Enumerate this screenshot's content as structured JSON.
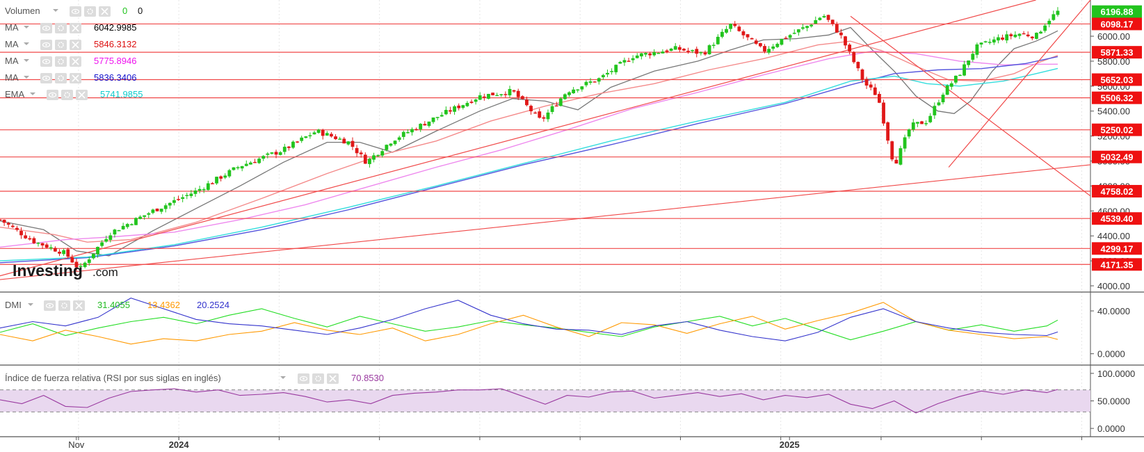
{
  "colors": {
    "up": "#22c41e",
    "down": "#e01818",
    "level_line": "#f04848",
    "trend_line": "#f04848",
    "ma1": "#777777",
    "ma2": "#f48a8a",
    "ma3": "#ee88ee",
    "ma4": "#5555dd",
    "ema": "#33dddd",
    "dmi_plus": "#22dd22",
    "dmi_minus": "#ff9900",
    "adx": "#3333cc",
    "rsi": "#9a3aa0",
    "rsi_band": "#e9d8ef"
  },
  "legend": {
    "volume": {
      "label": "Volumen",
      "v1": "0",
      "v2": "0"
    },
    "ma": [
      {
        "label": "MA",
        "value": "6042.9985",
        "color": "#000000"
      },
      {
        "label": "MA",
        "value": "5846.3132",
        "color": "#dd1111"
      },
      {
        "label": "MA",
        "value": "5775.8946",
        "color": "#ee11ee"
      },
      {
        "label": "MA",
        "value": "5836.3406",
        "color": "#1111cc"
      }
    ],
    "ema": {
      "label": "EMA",
      "value": "5741.9855",
      "color": "#11cccc"
    },
    "dmi": {
      "label": "DMI",
      "v1": "31.4055",
      "v2": "13.4362",
      "v3": "20.2524"
    },
    "rsi": {
      "label": "Índice de fuerza relativa (RSI por sus siglas en inglés)",
      "value": "70.8530"
    }
  },
  "watermark": {
    "brand": "Investing",
    "suffix": ".com"
  },
  "price_axis_ticks": [
    "6000.00",
    "5800.00",
    "5600.00",
    "5400.00",
    "5200.00",
    "5000.00",
    "4800.00",
    "4600.00",
    "4400.00",
    "4200.00",
    "4000.00"
  ],
  "price_tags": [
    {
      "value": "6196.88",
      "bg": "#22c41e"
    },
    {
      "value": "6098.17",
      "bg": "#ee1111"
    },
    {
      "value": "5871.33",
      "bg": "#ee1111"
    },
    {
      "value": "5652.03",
      "bg": "#ee1111"
    },
    {
      "value": "5506.32",
      "bg": "#ee1111"
    },
    {
      "value": "5250.02",
      "bg": "#ee1111"
    },
    {
      "value": "5032.49",
      "bg": "#ee1111"
    },
    {
      "value": "4758.02",
      "bg": "#ee1111"
    },
    {
      "value": "4539.40",
      "bg": "#ee1111"
    },
    {
      "value": "4299.17",
      "bg": "#ee1111"
    },
    {
      "value": "4171.35",
      "bg": "#ee1111"
    }
  ],
  "dmi_axis_ticks": [
    "40.0000",
    "0.0000"
  ],
  "rsi_axis_ticks": [
    "100.0000",
    "50.0000",
    "0.0000"
  ],
  "x_labels": [
    "Nov",
    "2024",
    "2025"
  ],
  "chart_data": {
    "type": "candlestick",
    "ylim": [
      3950,
      6290
    ],
    "levels": [
      6098.17,
      5871.33,
      5652.03,
      5506.32,
      5250.02,
      5032.49,
      4758.02,
      4539.4,
      4299.17,
      4171.35
    ],
    "last_price": 6196.88,
    "x_range": [
      0,
      100
    ],
    "x_ticks": {
      "Nov": 7,
      "2024": 16.4,
      "2025": 72.4
    },
    "trend_lines": [
      {
        "x": [
          0,
          95
        ],
        "y": [
          4080,
          6290
        ]
      },
      {
        "x": [
          0,
          100
        ],
        "y": [
          4050,
          4970
        ]
      },
      {
        "x": [
          78,
          100
        ],
        "y": [
          6160,
          4720
        ]
      },
      {
        "x": [
          87,
          100
        ],
        "y": [
          4950,
          6290
        ]
      }
    ],
    "price": {
      "x": [
        0,
        3,
        6,
        7.3,
        10,
        14,
        18,
        22,
        26,
        29,
        32,
        33.6,
        36,
        40,
        44,
        47,
        49.6,
        52,
        55,
        58,
        62,
        64.5,
        67,
        70,
        72,
        74,
        75.5,
        77,
        79.3,
        80.5,
        82,
        83.5,
        85,
        86.5,
        88,
        89.5,
        91.5,
        93.5,
        95,
        96,
        97
      ],
      "y": [
        4530,
        4360,
        4260,
        4130,
        4420,
        4600,
        4760,
        4960,
        5090,
        5240,
        5150,
        4990,
        5170,
        5350,
        5520,
        5560,
        5320,
        5560,
        5660,
        5840,
        5900,
        5860,
        6090,
        5880,
        5990,
        6080,
        6170,
        6020,
        5620,
        5520,
        4960,
        5280,
        5320,
        5550,
        5700,
        5910,
        5980,
        6020,
        6000,
        6120,
        6196.88
      ]
    },
    "ma_lines": [
      {
        "name": "MA",
        "value": 6042.9985,
        "x": [
          0,
          4,
          7,
          10,
          14,
          18,
          22,
          26,
          30,
          33,
          36,
          40,
          44,
          47,
          50,
          53,
          56,
          60,
          64,
          67,
          70,
          73,
          76,
          78,
          80,
          82,
          84,
          86,
          87.5,
          89,
          91,
          93,
          95,
          96,
          97
        ],
        "y": [
          4520,
          4450,
          4280,
          4240,
          4440,
          4620,
          4800,
          4990,
          5150,
          5150,
          5070,
          5240,
          5400,
          5500,
          5480,
          5410,
          5590,
          5720,
          5800,
          5890,
          5970,
          5980,
          6010,
          6070,
          5890,
          5720,
          5520,
          5400,
          5380,
          5480,
          5720,
          5900,
          5960,
          6000,
          6042.9985
        ]
      },
      {
        "name": "MA",
        "value": 5846.3132,
        "x": [
          0,
          5,
          8,
          12,
          18,
          24,
          30,
          35,
          40,
          45,
          50,
          55,
          60,
          65,
          70,
          75,
          78,
          81,
          84,
          87,
          90,
          93,
          95,
          97
        ],
        "y": [
          4470,
          4410,
          4350,
          4370,
          4510,
          4700,
          4900,
          5050,
          5160,
          5320,
          5440,
          5540,
          5620,
          5730,
          5820,
          5930,
          5960,
          5880,
          5760,
          5650,
          5640,
          5700,
          5780,
          5846.3132
        ]
      },
      {
        "name": "MA",
        "value": 5775.8946,
        "x": [
          0,
          6,
          10,
          16,
          22,
          28,
          34,
          40,
          46,
          52,
          58,
          64,
          70,
          76,
          80,
          84,
          88,
          92,
          95,
          97
        ],
        "y": [
          4310,
          4370,
          4390,
          4430,
          4530,
          4650,
          4800,
          4950,
          5090,
          5250,
          5420,
          5550,
          5690,
          5820,
          5880,
          5860,
          5800,
          5770,
          5775,
          5775.8946
        ]
      },
      {
        "name": "MA",
        "value": 5836.3406,
        "x": [
          0,
          8,
          16,
          24,
          32,
          40,
          48,
          56,
          64,
          72,
          78,
          82,
          86,
          90,
          94,
          97
        ],
        "y": [
          4185,
          4225,
          4320,
          4450,
          4610,
          4790,
          4970,
          5130,
          5300,
          5460,
          5610,
          5700,
          5730,
          5740,
          5780,
          5836.3406
        ]
      },
      {
        "name": "EMA",
        "value": 5741.9855,
        "x": [
          0,
          8,
          16,
          24,
          32,
          40,
          48,
          56,
          64,
          72,
          78,
          82,
          85,
          88,
          92,
          95,
          97
        ],
        "y": [
          4200,
          4230,
          4330,
          4470,
          4630,
          4800,
          4980,
          5160,
          5320,
          5470,
          5640,
          5680,
          5620,
          5600,
          5640,
          5700,
          5741.9855
        ]
      }
    ],
    "dmi": {
      "ylim": [
        -8,
        55
      ],
      "series": [
        {
          "name": "DMI+",
          "value": 31.4055,
          "x": [
            0,
            3,
            6,
            9,
            12,
            15,
            18,
            21,
            24,
            27,
            30,
            33,
            36,
            39,
            42,
            45,
            48,
            51,
            54,
            57,
            60,
            63,
            66,
            69,
            72,
            75,
            78,
            81,
            84,
            87,
            90,
            93,
            96,
            97
          ],
          "y": [
            20,
            28,
            17,
            24,
            30,
            34,
            28,
            36,
            42,
            33,
            25,
            35,
            28,
            21,
            25,
            31,
            27,
            24,
            20,
            16,
            25,
            30,
            35,
            26,
            33,
            23,
            13,
            21,
            30,
            22,
            27,
            21,
            26,
            31.4
          ]
        },
        {
          "name": "DMI-",
          "value": 13.4362,
          "x": [
            0,
            3,
            6,
            9,
            12,
            15,
            18,
            21,
            24,
            27,
            30,
            33,
            36,
            39,
            42,
            45,
            48,
            51,
            54,
            57,
            60,
            63,
            66,
            69,
            72,
            75,
            78,
            81,
            84,
            87,
            90,
            93,
            96,
            97
          ],
          "y": [
            18,
            12,
            22,
            16,
            9,
            14,
            12,
            18,
            21,
            29,
            22,
            18,
            24,
            12,
            18,
            28,
            36,
            25,
            16,
            29,
            27,
            19,
            28,
            35,
            23,
            31,
            38,
            48,
            30,
            22,
            18,
            14,
            16,
            13.4
          ]
        },
        {
          "name": "ADX",
          "value": 20.2524,
          "x": [
            0,
            3,
            6,
            9,
            12,
            15,
            18,
            21,
            24,
            27,
            30,
            33,
            36,
            39,
            42,
            45,
            48,
            51,
            54,
            57,
            60,
            63,
            66,
            69,
            72,
            75,
            78,
            81,
            84,
            87,
            90,
            93,
            96,
            97
          ],
          "y": [
            24,
            30,
            26,
            34,
            52,
            42,
            32,
            28,
            26,
            22,
            18,
            24,
            32,
            42,
            50,
            36,
            28,
            23,
            22,
            18,
            26,
            30,
            22,
            16,
            12,
            20,
            34,
            42,
            30,
            24,
            20,
            18,
            17,
            20.3
          ]
        }
      ]
    },
    "rsi": {
      "ylim": [
        -10,
        110
      ],
      "band": [
        30,
        70
      ],
      "value": 70.853,
      "x": [
        0,
        2,
        4,
        6,
        8,
        10,
        12,
        14,
        16,
        18,
        20,
        22,
        24,
        26,
        28,
        30,
        32,
        34,
        36,
        38,
        40,
        42,
        44,
        46,
        48,
        50,
        52,
        54,
        56,
        58,
        60,
        62,
        64,
        66,
        68,
        70,
        72,
        74,
        76,
        78,
        80,
        82,
        84,
        86,
        88,
        90,
        92,
        94,
        96,
        97
      ],
      "y": [
        52,
        45,
        60,
        40,
        38,
        55,
        67,
        70,
        72,
        66,
        70,
        60,
        62,
        65,
        58,
        48,
        52,
        45,
        60,
        64,
        66,
        70,
        70,
        72,
        58,
        44,
        60,
        57,
        66,
        68,
        55,
        60,
        65,
        58,
        63,
        52,
        60,
        56,
        62,
        44,
        36,
        50,
        28,
        45,
        58,
        68,
        62,
        70,
        65,
        70.85
      ]
    }
  }
}
